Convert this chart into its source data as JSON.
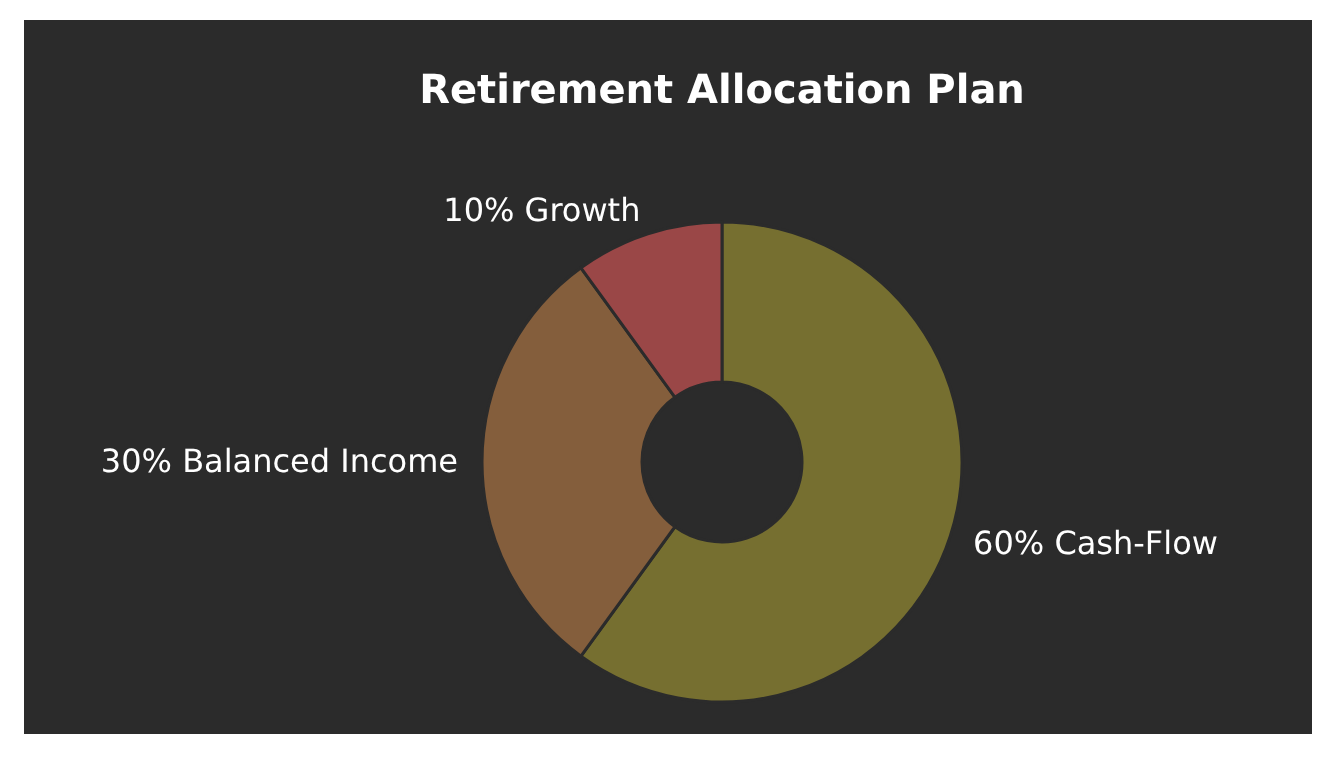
{
  "chart_data": {
    "type": "donut",
    "title": "Retirement Allocation Plan",
    "categories": [
      "Cash-Flow",
      "Balanced Income",
      "Growth"
    ],
    "values": [
      60,
      30,
      10
    ],
    "value_labels": [
      "60%",
      "30%",
      "10%"
    ],
    "colors": [
      "#766f30",
      "#845e3c",
      "#9a4747"
    ],
    "legend": false
  }
}
